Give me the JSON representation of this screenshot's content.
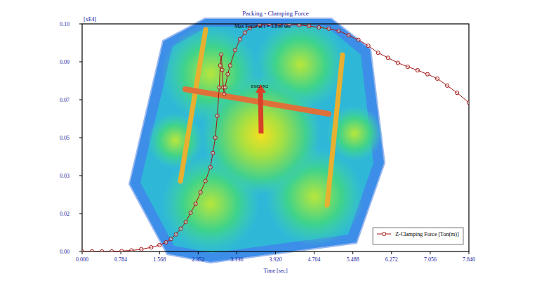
{
  "chart_data": {
    "type": "line",
    "title": "Packing - Clamping Force",
    "y_label": "[xE4]",
    "x_label": "Time [sec]",
    "annotations": [
      "Max Force at t = 3.840 sec",
      "EM1+N2"
    ],
    "x": [
      0,
      0.2,
      0.4,
      0.6,
      0.8,
      1.0,
      1.2,
      1.4,
      1.568,
      1.7,
      1.8,
      1.9,
      2.0,
      2.1,
      2.2,
      2.3,
      2.4,
      2.5,
      2.6,
      2.65,
      2.7,
      2.74,
      2.78,
      2.8,
      2.82,
      2.84,
      2.86,
      2.88,
      2.9,
      2.95,
      3.0,
      3.1,
      3.2,
      3.3,
      3.4,
      3.6,
      3.8,
      4.0,
      4.2,
      4.4,
      4.6,
      4.8,
      5.0,
      5.2,
      5.4,
      5.6,
      5.8,
      6.0,
      6.2,
      6.4,
      6.6,
      6.8,
      7.0,
      7.2,
      7.4,
      7.6,
      7.84
    ],
    "series": [
      {
        "name": "Z-Clamping Force [Ton(m)]",
        "color": "#a31515",
        "marker": "circle",
        "line_style": "solid",
        "values": [
          0,
          0,
          0,
          0,
          0.0002,
          0.0005,
          0.001,
          0.0019,
          0.0029,
          0.0042,
          0.0057,
          0.0078,
          0.0104,
          0.0135,
          0.0177,
          0.0218,
          0.027,
          0.0322,
          0.0385,
          0.045,
          0.052,
          0.062,
          0.075,
          0.085,
          0.09,
          0.083,
          0.075,
          0.072,
          0.075,
          0.081,
          0.085,
          0.092,
          0.097,
          0.1,
          0.102,
          0.1035,
          0.104,
          0.104,
          0.1038,
          0.1035,
          0.103,
          0.1024,
          0.1018,
          0.1008,
          0.0988,
          0.0967,
          0.094,
          0.0908,
          0.0885,
          0.0862,
          0.0844,
          0.0828,
          0.081,
          0.079,
          0.0758,
          0.0725,
          0.068
        ]
      }
    ],
    "xlim": [
      0,
      7.84
    ],
    "xticks": [
      {
        "value": 0,
        "label": "0.000"
      },
      0.784,
      1.568,
      2.352,
      3.136,
      {
        "value": 3.92,
        "label": "3.920"
      },
      4.704,
      5.488,
      6.272,
      7.056,
      {
        "value": 7.84,
        "label": "7.840"
      }
    ],
    "ylim": [
      0,
      0.104
    ],
    "yticks": [
      {
        "value": 0,
        "label": "0.00"
      },
      {
        "value": 0.01733,
        "label": "0.02"
      },
      {
        "value": 0.03467,
        "label": "0.03"
      },
      {
        "value": 0.052,
        "label": "0.05"
      },
      {
        "value": 0.06933,
        "label": "0.07"
      },
      {
        "value": 0.08667,
        "label": "0.09"
      },
      {
        "value": 0.104,
        "label": "0.10"
      }
    ],
    "grid": false,
    "legend": "bottom-right"
  }
}
